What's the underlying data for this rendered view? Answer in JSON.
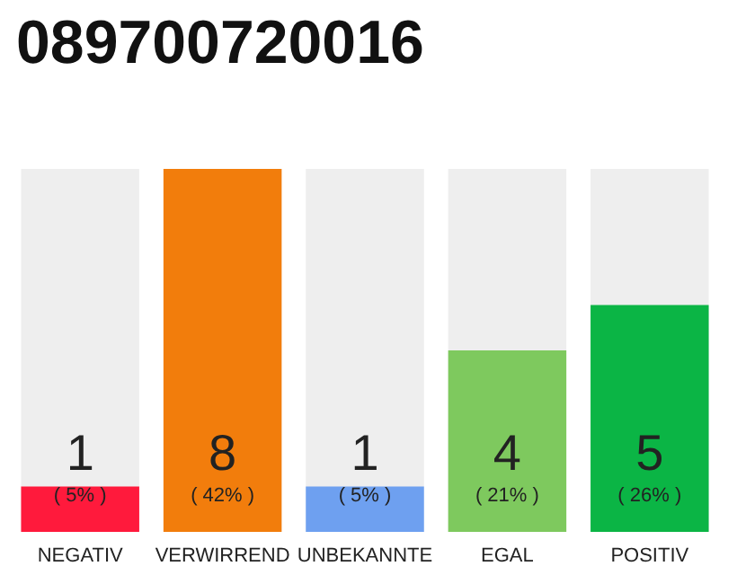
{
  "chart_data": {
    "type": "bar",
    "title": "089700720016",
    "categories": [
      "NEGATIV",
      "VERWIRREND",
      "UNBEKANNTE",
      "EGAL",
      "POSITIV"
    ],
    "values": [
      1,
      8,
      1,
      4,
      5
    ],
    "colors": [
      "#ff1a3c",
      "#f27d0c",
      "#6ea0f0",
      "#7ec95e",
      "#0bb545"
    ],
    "data_labels": true,
    "annotations": [
      "( 5% )",
      "( 42% )",
      "( 5% )",
      "( 21% )",
      "( 26% )"
    ]
  }
}
